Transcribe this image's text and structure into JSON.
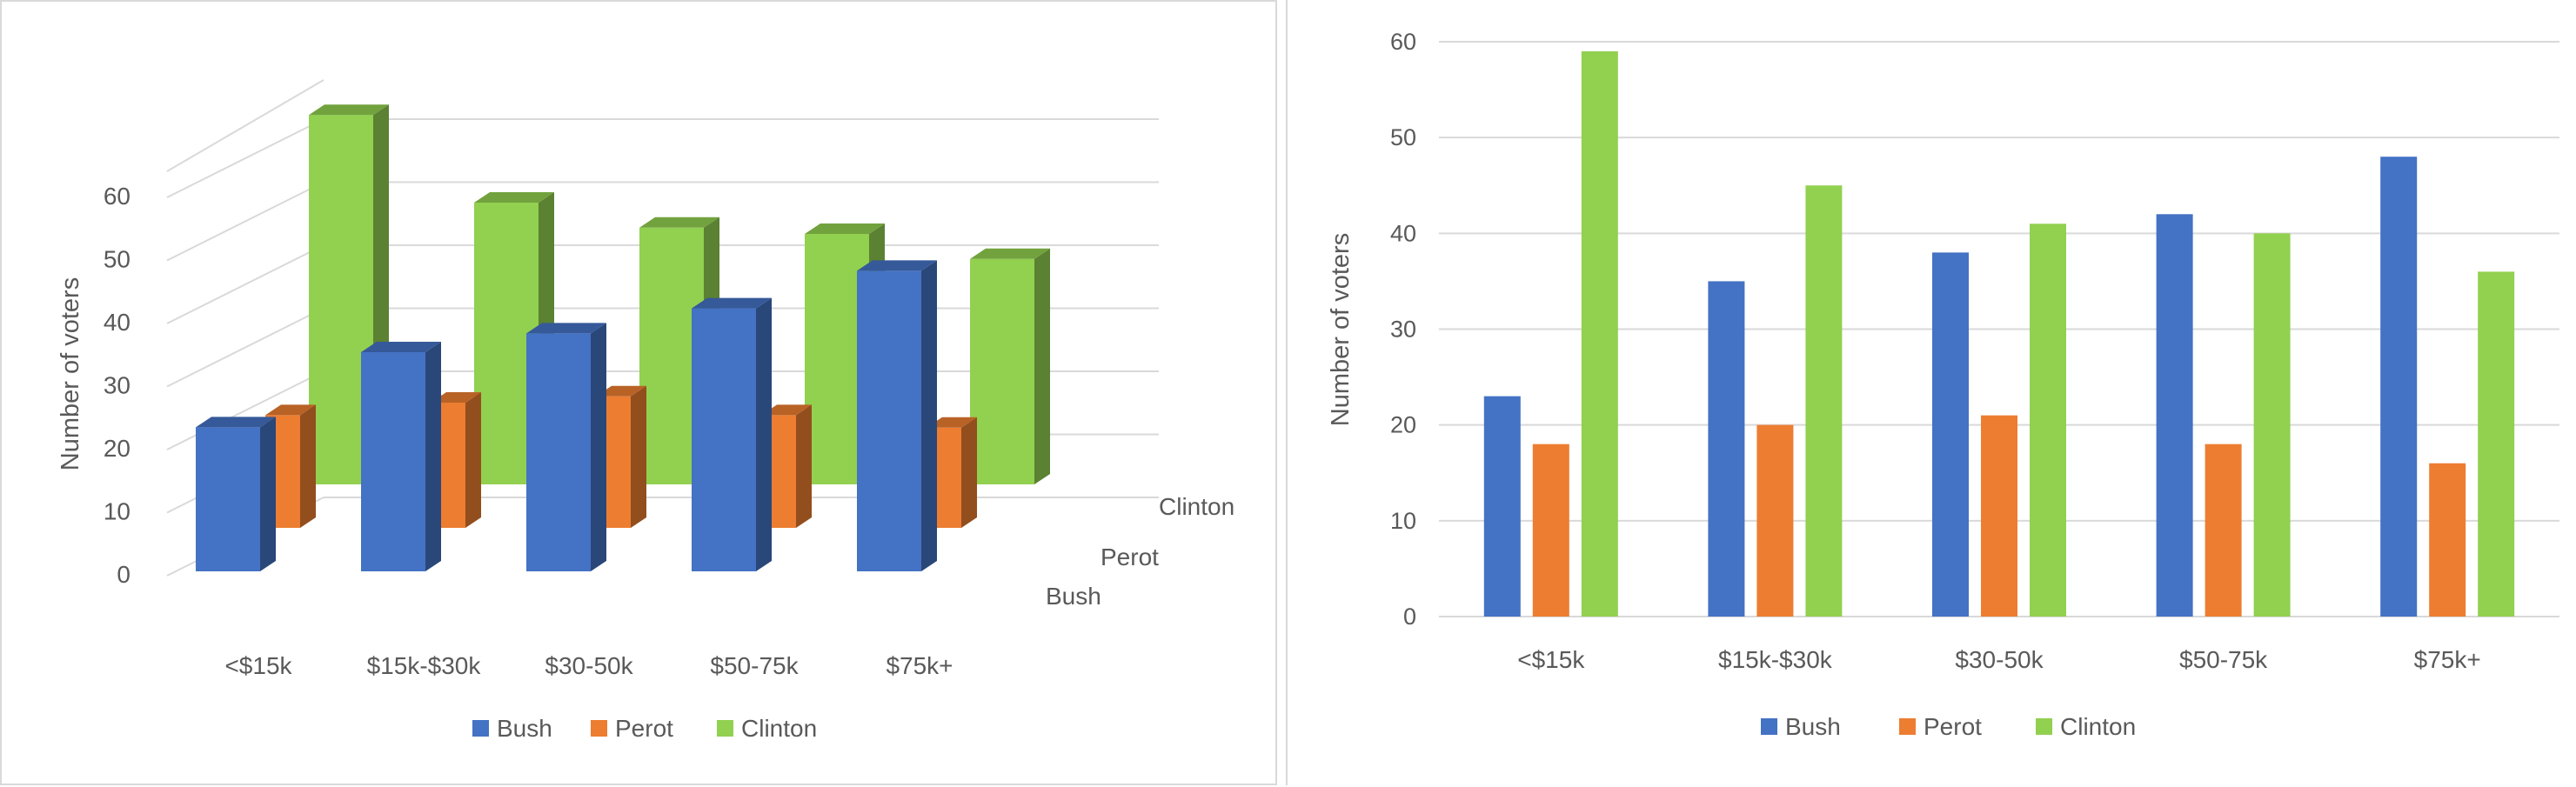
{
  "chart_data": [
    {
      "type": "bar",
      "variant": "3d-clustered",
      "categories": [
        "<$15k",
        "$15k-$30k",
        "$30-50k",
        "$50-75k",
        "$75k+"
      ],
      "series": [
        {
          "name": "Bush",
          "values": [
            23,
            35,
            38,
            42,
            48
          ]
        },
        {
          "name": "Perot",
          "values": [
            18,
            20,
            21,
            18,
            16
          ]
        },
        {
          "name": "Clinton",
          "values": [
            59,
            45,
            41,
            40,
            36
          ]
        }
      ],
      "title": "",
      "xlabel": "",
      "ylabel": "Number of voters",
      "yticks": [
        "0",
        "10",
        "20",
        "30",
        "40",
        "50",
        "60"
      ],
      "depth_labels": [
        "Bush",
        "Perot",
        "Clinton"
      ],
      "ylim": [
        0,
        60
      ],
      "grid": true,
      "legend_position": "bottom"
    },
    {
      "type": "bar",
      "categories": [
        "<$15k",
        "$15k-$30k",
        "$30-50k",
        "$50-75k",
        "$75k+"
      ],
      "series": [
        {
          "name": "Bush",
          "values": [
            23,
            35,
            38,
            42,
            48
          ]
        },
        {
          "name": "Perot",
          "values": [
            18,
            20,
            21,
            18,
            16
          ]
        },
        {
          "name": "Clinton",
          "values": [
            59,
            45,
            41,
            40,
            36
          ]
        }
      ],
      "title": "",
      "xlabel": "",
      "ylabel": "Number of voters",
      "yticks": [
        "0",
        "10",
        "20",
        "30",
        "40",
        "50",
        "60"
      ],
      "ylim": [
        0,
        60
      ],
      "grid": true,
      "legend_position": "bottom"
    }
  ],
  "colors": {
    "Bush": "#4472c4",
    "Perot": "#ed7d31",
    "Clinton": "#92d050",
    "grid": "#d9d9d9",
    "text": "#595959"
  }
}
